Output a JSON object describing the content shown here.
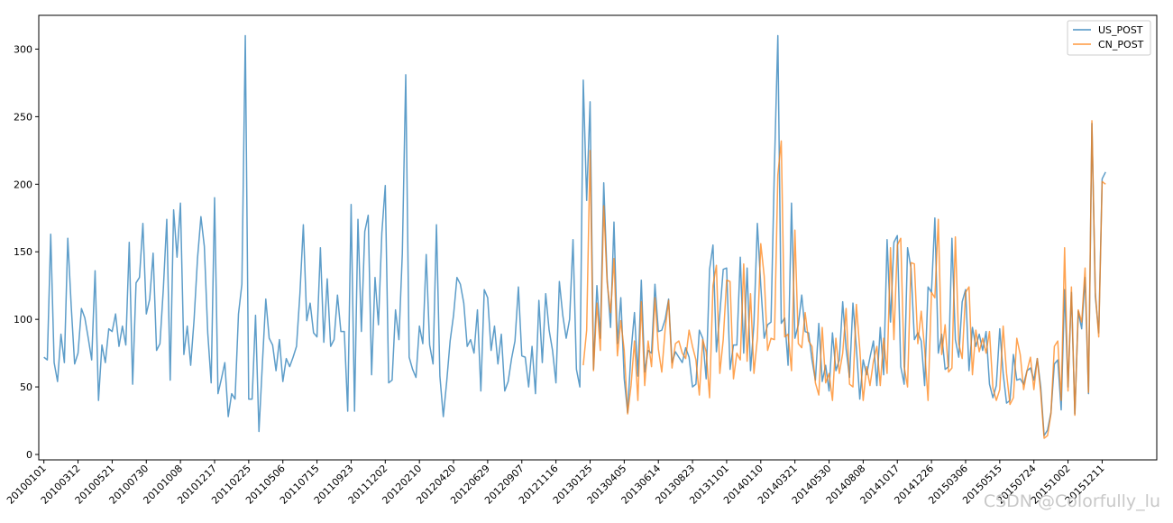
{
  "chart_data": {
    "type": "line",
    "title": "",
    "xlabel": "",
    "ylabel": "",
    "x_tick_labels": [
      "20100101",
      "20100312",
      "20100521",
      "20100730",
      "20101008",
      "20101217",
      "20110225",
      "20110506",
      "20110715",
      "20110923",
      "20111202",
      "20120210",
      "20120420",
      "20120629",
      "20120907",
      "20121116",
      "20130125",
      "20130405",
      "20130614",
      "20130823",
      "20131101",
      "20140110",
      "20140321",
      "20140530",
      "20140808",
      "20141017",
      "20141226",
      "20150306",
      "20150515",
      "20150724",
      "20151002",
      "20151211"
    ],
    "x_tick_step_weeks": 10,
    "ylim": [
      -4,
      325
    ],
    "y_ticks": [
      0,
      50,
      100,
      150,
      200,
      250,
      300
    ],
    "xlim": [
      -1.5,
      326
    ],
    "grid": false,
    "legend_position": "top-right",
    "series": [
      {
        "name": "US_POST",
        "color": "#1f77b4",
        "start_index": 0,
        "values": [
          72,
          70,
          163,
          68,
          54,
          89,
          68,
          160,
          110,
          67,
          75,
          108,
          101,
          86,
          70,
          136,
          40,
          81,
          68,
          93,
          91,
          104,
          80,
          95,
          81,
          157,
          52,
          127,
          131,
          171,
          104,
          115,
          149,
          77,
          82,
          123,
          174,
          55,
          181,
          146,
          186,
          74,
          95,
          66,
          100,
          145,
          176,
          154,
          90,
          53,
          190,
          45,
          56,
          68,
          28,
          45,
          41,
          104,
          126,
          310,
          41,
          41,
          103,
          17,
          67,
          115,
          86,
          81,
          62,
          85,
          54,
          71,
          65,
          72,
          80,
          119,
          170,
          99,
          112,
          90,
          87,
          153,
          83,
          130,
          80,
          85,
          118,
          91,
          91,
          32,
          185,
          32,
          174,
          91,
          165,
          177,
          59,
          131,
          96,
          164,
          199,
          53,
          55,
          107,
          85,
          149,
          281,
          72,
          63,
          57,
          95,
          82,
          148,
          81,
          67,
          170,
          58,
          28,
          54,
          84,
          103,
          131,
          126,
          112,
          80,
          85,
          75,
          107,
          47,
          122,
          116,
          77,
          95,
          67,
          89,
          47,
          54,
          71,
          84,
          124,
          73,
          72,
          50,
          80,
          45,
          114,
          68,
          119,
          92,
          77,
          53,
          128,
          103,
          86,
          100,
          159,
          63,
          50,
          277,
          188,
          261,
          63,
          125,
          86,
          201,
          130,
          94,
          172,
          82,
          116,
          56,
          31,
          76,
          105,
          58,
          129,
          61,
          77,
          75,
          126,
          91,
          92,
          100,
          115,
          68,
          76,
          72,
          68,
          79,
          72,
          50,
          52,
          92,
          86,
          56,
          137,
          155,
          76,
          104,
          137,
          138,
          63,
          81,
          81,
          146,
          75,
          138,
          62,
          97,
          171,
          125,
          86,
          96,
          98,
          213,
          310,
          97,
          101,
          66,
          186,
          86,
          96,
          118,
          91,
          90,
          70,
          55,
          97,
          54,
          66,
          47,
          90,
          62,
          70,
          113,
          78,
          57,
          112,
          79,
          41,
          70,
          59,
          72,
          84,
          51,
          94,
          59,
          159,
          98,
          157,
          162,
          65,
          52,
          153,
          138,
          85,
          90,
          84,
          51,
          124,
          120,
          175,
          75,
          89,
          63,
          65,
          160,
          85,
          72,
          113,
          122,
          62,
          94,
          80,
          89,
          77,
          91,
          52,
          42,
          51,
          93,
          60,
          38,
          40,
          74,
          55,
          56,
          52,
          62,
          64,
          55,
          71,
          50,
          14,
          18,
          31,
          67,
          70,
          33,
          122,
          50,
          120,
          30,
          106,
          93,
          131,
          45,
          245,
          117,
          90,
          204,
          209
        ]
      },
      {
        "name": "CN_POST",
        "color": "#ff7f0e",
        "start_index": 158,
        "values": [
          66,
          92,
          225,
          62,
          112,
          77,
          184,
          127,
          105,
          145,
          73,
          99,
          77,
          30,
          51,
          84,
          40,
          113,
          51,
          84,
          65,
          116,
          78,
          61,
          93,
          114,
          64,
          82,
          84,
          75,
          71,
          92,
          80,
          70,
          44,
          85,
          76,
          42,
          125,
          140,
          60,
          85,
          129,
          128,
          56,
          75,
          70,
          141,
          69,
          119,
          60,
          86,
          156,
          132,
          77,
          86,
          85,
          207,
          232,
          87,
          89,
          62,
          166,
          82,
          79,
          105,
          84,
          80,
          53,
          44,
          94,
          53,
          60,
          40,
          86,
          60,
          75,
          108,
          52,
          50,
          111,
          78,
          40,
          65,
          51,
          69,
          80,
          51,
          86,
          60,
          153,
          85,
          155,
          160,
          65,
          50,
          142,
          141,
          82,
          106,
          78,
          40,
          120,
          116,
          174,
          74,
          96,
          61,
          64,
          161,
          82,
          71,
          120,
          124,
          59,
          92,
          76,
          86,
          75,
          91,
          49,
          40,
          48,
          95,
          60,
          37,
          42,
          86,
          74,
          48,
          62,
          72,
          48,
          71,
          46,
          12,
          14,
          30,
          80,
          84,
          40,
          153,
          47,
          124,
          29,
          107,
          98,
          138,
          46,
          247,
          120,
          87,
          202,
          200
        ]
      }
    ]
  },
  "watermark": "CSDN @Colorfully_lu"
}
